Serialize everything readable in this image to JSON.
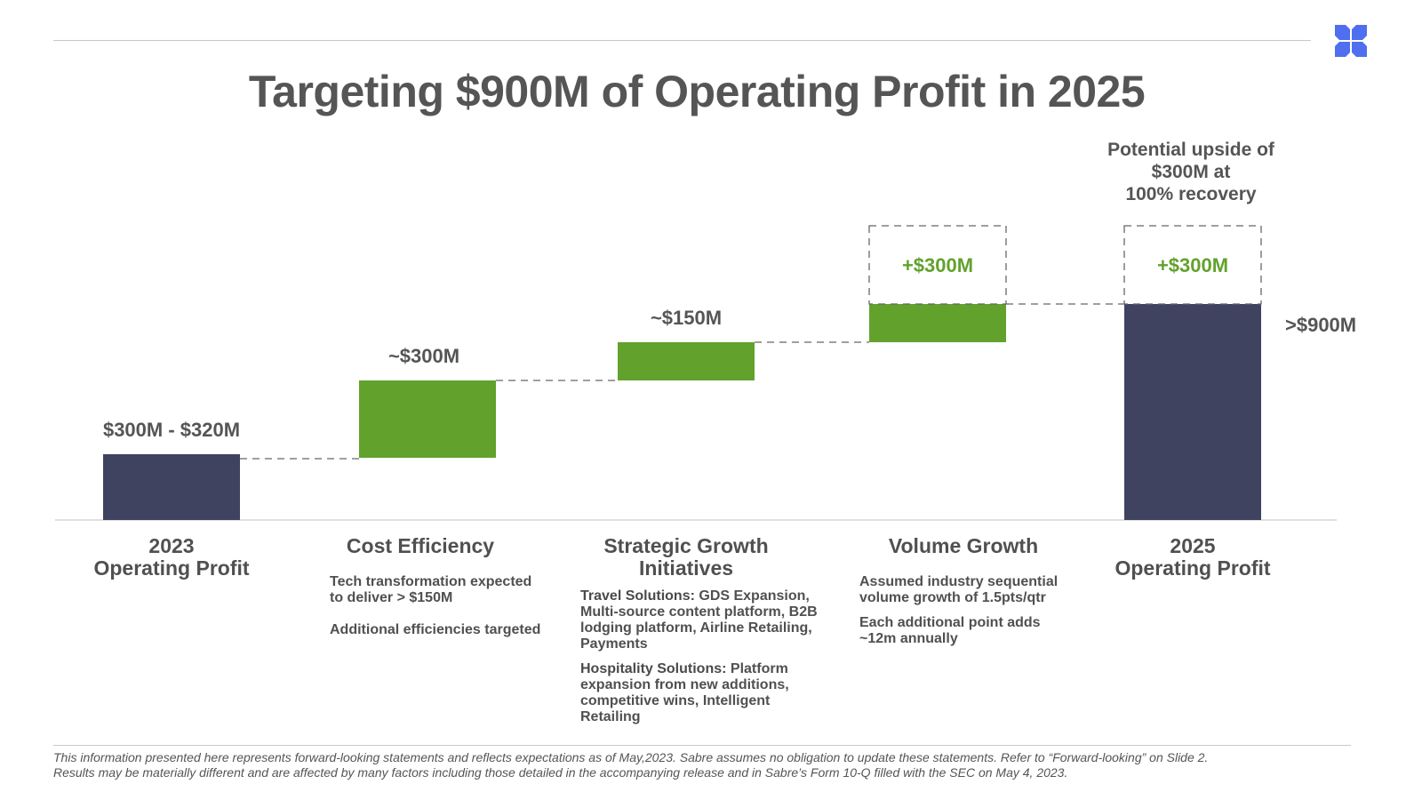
{
  "slide": {
    "title": "Targeting $900M of Operating Profit in 2025",
    "logo_icon": "x-logo-icon",
    "upside_note": [
      "Potential upside of",
      "$300M at",
      "100% recovery"
    ],
    "footer": [
      "This information presented here represents forward-looking statements and reflects expectations as of May,2023. Sabre assumes no obligation to update these statements. Refer to “Forward-looking” on Slide 2.",
      "Results may be materially different and are affected by many factors including those detailed in the accompanying release and in Sabre’s Form 10-Q filled with the SEC on May 4, 2023."
    ],
    "colors": {
      "total_bar": "#3f4360",
      "increment_bar": "#62a22c",
      "upside_text": "#62a22c",
      "text": "#555555",
      "logo": "#4f6ef0"
    }
  },
  "chart_data": {
    "type": "bar",
    "subtype": "waterfall",
    "title": "Targeting $900M of Operating Profit in 2025",
    "units": "USD millions",
    "categories": [
      "2023 Operating Profit",
      "Cost Efficiency",
      "Strategic Growth Initiatives",
      "Volume Growth",
      "2025 Operating Profit"
    ],
    "steps": [
      {
        "kind": "total",
        "value": 310,
        "label": "$300M - $320M"
      },
      {
        "kind": "increase",
        "value": 300,
        "label": "~$300M"
      },
      {
        "kind": "increase",
        "value": 150,
        "label": "~$150M"
      },
      {
        "kind": "increase",
        "value": 150,
        "label": "",
        "upside": 300,
        "upside_label": "+$300M"
      },
      {
        "kind": "total",
        "value": 900,
        "label": ">$900M",
        "upside": 300,
        "upside_label": "+$300M"
      }
    ],
    "connectors": "dashed",
    "xlabel": "",
    "ylabel": "",
    "grid": false,
    "legend": "none"
  },
  "categories": [
    {
      "title": [
        "2023",
        "Operating Profit"
      ],
      "desc": []
    },
    {
      "title": [
        "Cost Efficiency"
      ],
      "desc": [
        {
          "lead": "",
          "text": "Tech transformation expected to deliver > $150M"
        },
        {
          "lead": "",
          "text": "Additional efficiencies targeted"
        }
      ]
    },
    {
      "title": [
        "Strategic Growth",
        "Initiatives"
      ],
      "desc": [
        {
          "lead": "Travel Solutions:",
          "text": " GDS Expansion, Multi-source content platform, B2B lodging platform, Airline Retailing, Payments"
        },
        {
          "lead": "Hospitality Solutions:",
          "text": " Platform expansion from new additions, competitive wins, Intelligent Retailing"
        }
      ]
    },
    {
      "title": [
        "Volume Growth"
      ],
      "desc": [
        {
          "lead": "",
          "text": "Assumed industry sequential volume growth of 1.5pts/qtr"
        },
        {
          "lead": "",
          "text": "Each additional point adds ~12m annually"
        }
      ]
    },
    {
      "title": [
        "2025",
        "Operating Profit"
      ],
      "desc": []
    }
  ]
}
